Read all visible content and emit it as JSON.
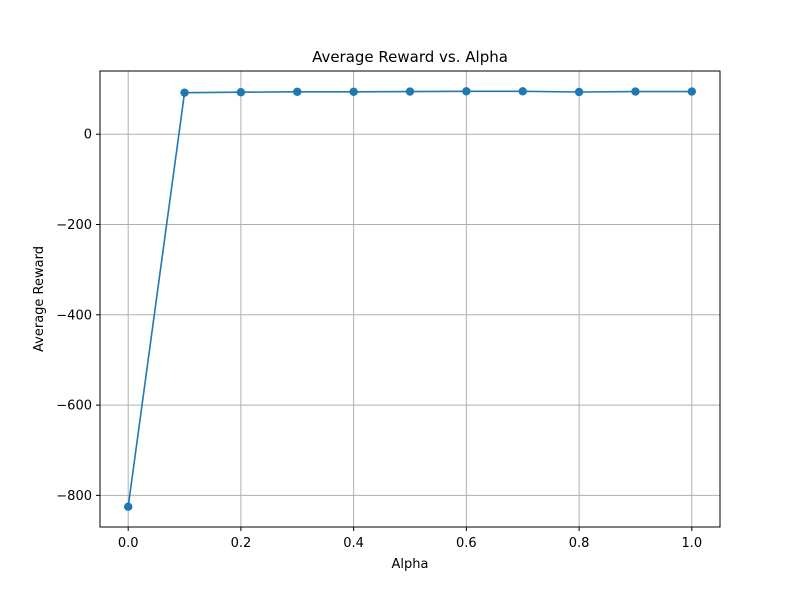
{
  "chart_data": {
    "type": "line",
    "title": "Average Reward vs. Alpha",
    "xlabel": "Alpha",
    "ylabel": "Average Reward",
    "xlim": [
      -0.05,
      1.05
    ],
    "ylim": [
      -870,
      140
    ],
    "grid": true,
    "xticks": [
      0.0,
      0.2,
      0.4,
      0.6,
      0.8,
      1.0
    ],
    "xtick_labels": [
      "0.0",
      "0.2",
      "0.4",
      "0.6",
      "0.8",
      "1.0"
    ],
    "yticks": [
      0,
      -200,
      -400,
      -600,
      -800
    ],
    "ytick_labels": [
      "0",
      "−200",
      "−400",
      "−600",
      "−800"
    ],
    "series": [
      {
        "color": "#1f77b4",
        "marker": "circle",
        "x": [
          0.0,
          0.1,
          0.2,
          0.3,
          0.4,
          0.5,
          0.6,
          0.7,
          0.8,
          0.9,
          1.0
        ],
        "y": [
          -825,
          92,
          93,
          94,
          94,
          94.5,
          95,
          95,
          93.5,
          94.5,
          94.5
        ]
      }
    ],
    "colors": {
      "grid": "#b0b0b0",
      "axes": "#000000"
    }
  }
}
